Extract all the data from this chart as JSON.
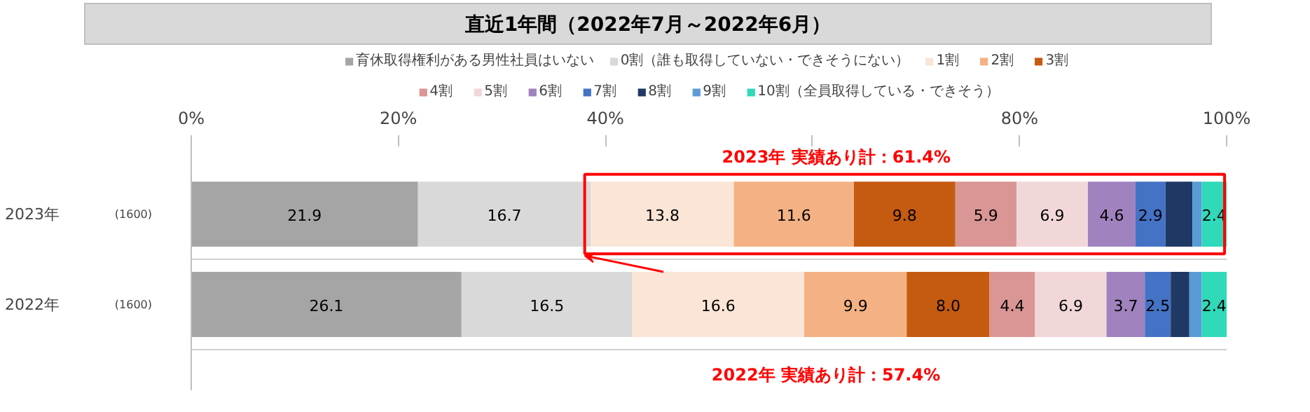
{
  "chart_data": {
    "type": "bar",
    "orientation": "horizontal",
    "stacked": true,
    "title": "直近1年間（2022年7月～2022年6月）",
    "categories": [
      "2023年",
      "2022年"
    ],
    "series": [
      {
        "name": "育休取得権利がある男性社員はいない",
        "color": "#a5a5a5",
        "values": [
          21.9,
          26.1
        ],
        "value_labels": [
          "21.9",
          "26.1"
        ]
      },
      {
        "name": "0割（誰も取得していない・できそうにない）",
        "color": "#d9d9d9",
        "values": [
          16.7,
          16.5
        ],
        "value_labels": [
          "16.7",
          "16.5"
        ]
      },
      {
        "name": "1割",
        "color": "#fbe5d6",
        "values": [
          13.8,
          16.6
        ],
        "value_labels": [
          "13.8",
          "16.6"
        ]
      },
      {
        "name": "2割",
        "color": "#f4b183",
        "values": [
          11.6,
          9.9
        ],
        "value_labels": [
          "11.6",
          "9.9"
        ]
      },
      {
        "name": "3割",
        "color": "#c55a11",
        "values": [
          9.8,
          8.0
        ],
        "value_labels": [
          "9.8",
          "8.0"
        ]
      },
      {
        "name": "4割",
        "color": "#d99694",
        "values": [
          5.9,
          4.4
        ],
        "value_labels": [
          "5.9",
          "4.4"
        ]
      },
      {
        "name": "5割",
        "color": "#f2d7d9",
        "values": [
          6.9,
          6.9
        ],
        "value_labels": [
          "6.9",
          "6.9"
        ]
      },
      {
        "name": "6割",
        "color": "#a082bf",
        "values": [
          4.6,
          3.7
        ],
        "value_labels": [
          "4.6",
          "3.7"
        ]
      },
      {
        "name": "7割",
        "color": "#4472c4",
        "values": [
          2.9,
          2.5
        ],
        "value_labels": [
          "2.9",
          "2.5"
        ]
      },
      {
        "name": "8割",
        "color": "#203864",
        "values": [
          2.6,
          1.8
        ],
        "value_labels": [
          null,
          null
        ]
      },
      {
        "name": "9割",
        "color": "#5b9bd5",
        "values": [
          0.9,
          1.2
        ],
        "value_labels": [
          null,
          null
        ]
      },
      {
        "name": "10割（全員取得している・できそう）",
        "color": "#2fd9b9",
        "values": [
          2.4,
          2.4
        ],
        "value_labels": [
          "2.4",
          "2.4"
        ]
      }
    ],
    "xlim": [
      0,
      100
    ],
    "xticks": [
      {
        "value": 0,
        "label": "0%"
      },
      {
        "value": 20,
        "label": "20%"
      },
      {
        "value": 40,
        "label": "40%"
      },
      {
        "value": 60,
        "label": null
      },
      {
        "value": 80,
        "label": "80%"
      },
      {
        "value": 100,
        "label": "100%"
      }
    ],
    "annotations": [
      "(1600)",
      "(1600)",
      "2023年 実績あり計：61.4%",
      "2022年 実績あり計：57.4%"
    ],
    "legend": "top",
    "grid": false
  }
}
